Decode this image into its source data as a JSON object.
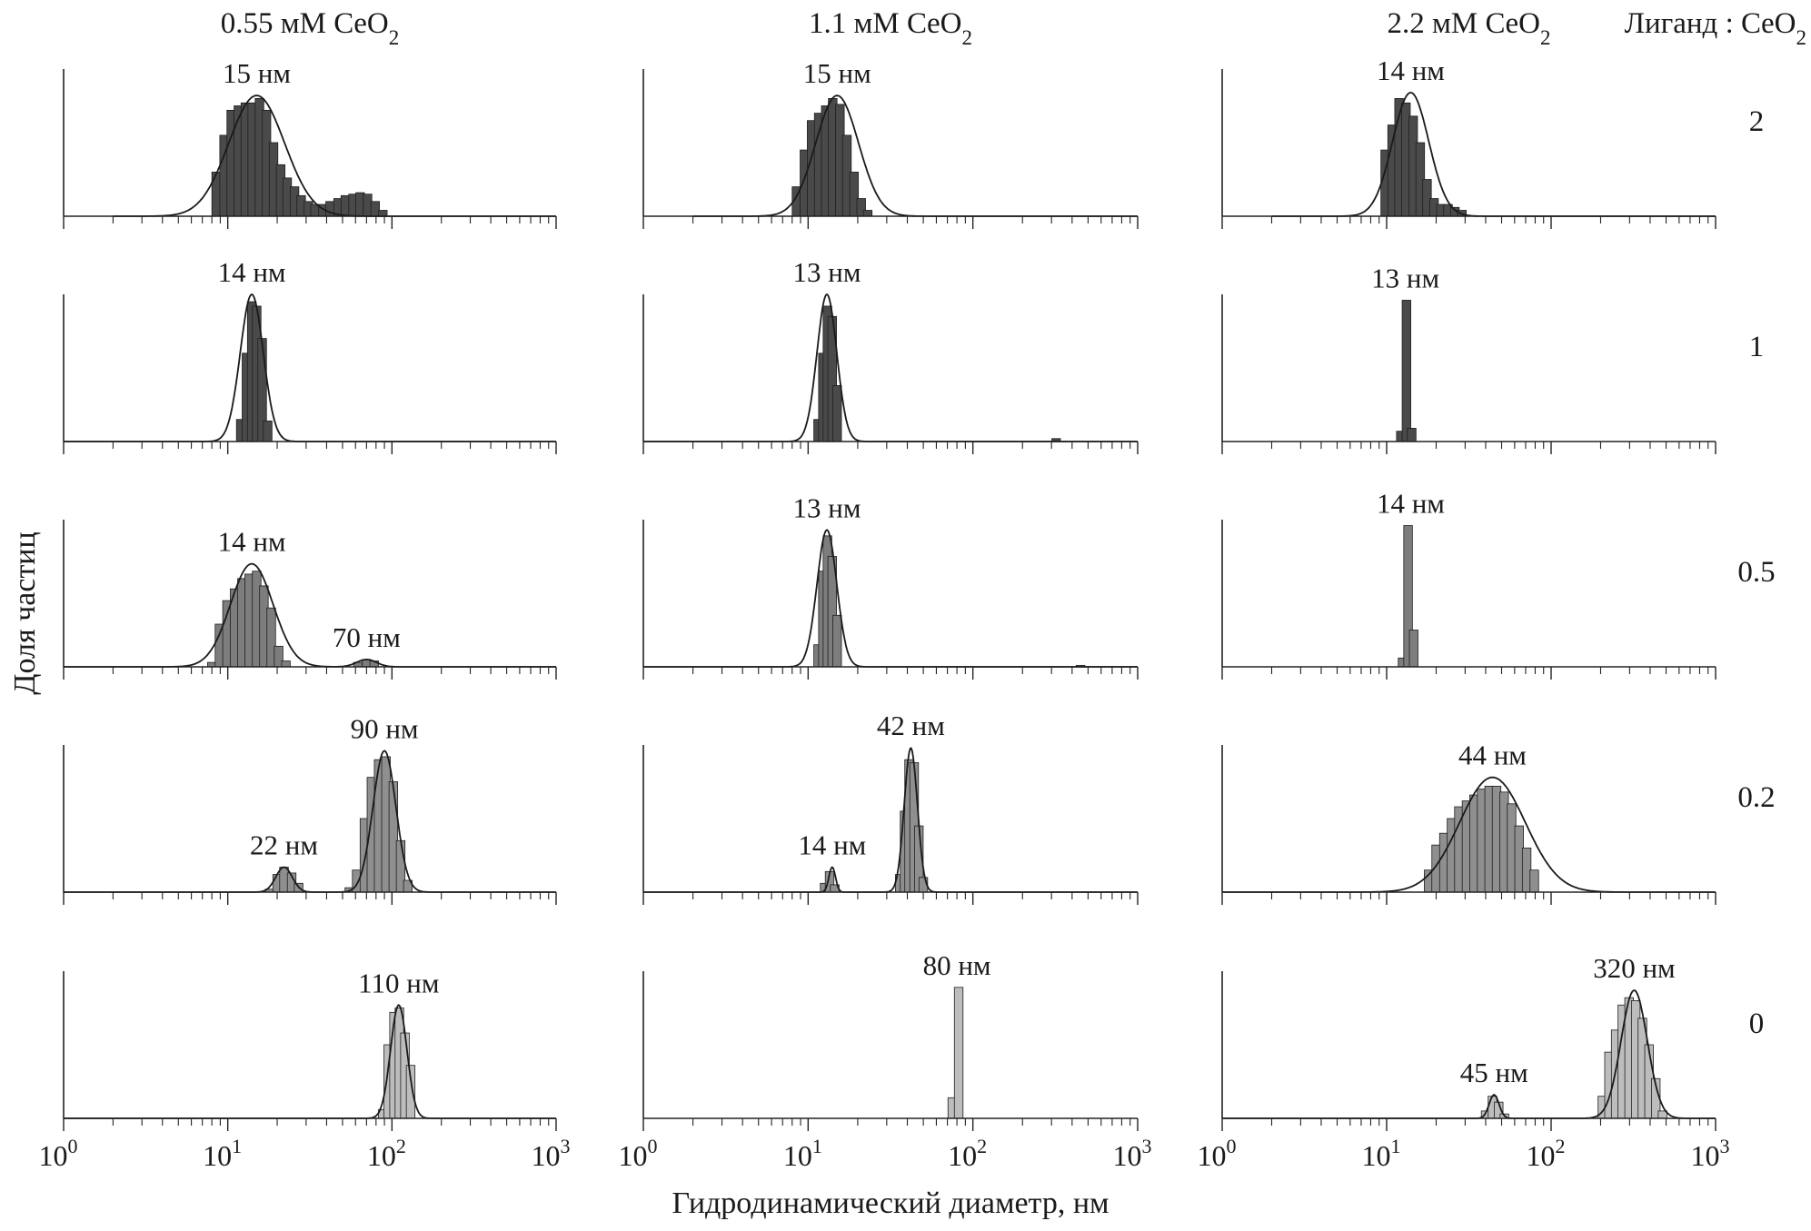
{
  "chart_data": {
    "type": "bar",
    "grid": false,
    "x_scale": "log",
    "xlim": [
      1,
      1000
    ],
    "x_tick_labels": [
      {
        "base": "10",
        "exp": "0"
      },
      {
        "base": "10",
        "exp": "1"
      },
      {
        "base": "10",
        "exp": "2"
      },
      {
        "base": "10",
        "exp": "3"
      }
    ],
    "xlabel": "Гидродинамический диаметр, нм",
    "ylabel": "Доля частиц",
    "columns": [
      {
        "prefix": "0.55 мМ CeO",
        "sub": "2"
      },
      {
        "prefix": "1.1 мМ CeO",
        "sub": "2"
      },
      {
        "prefix": "2.2 мМ CeO",
        "sub": "2"
      }
    ],
    "ratio_header": {
      "prefix": "Лиганд : CeO",
      "sub": "2"
    },
    "ratios": [
      "2",
      "1",
      "0.5",
      "0.2",
      "0"
    ],
    "bar_colors": [
      "#4a4a4a",
      "#4a4a4a",
      "#7d7d7d",
      "#8f8f8f",
      "#bdbdbd"
    ],
    "panels": [
      {
        "row": 0,
        "col": 0,
        "peaks": [
          {
            "label": "15 нм",
            "x": 15,
            "sd": 0.17,
            "height": 0.82
          }
        ],
        "bars": [
          [
            8.5,
            0.3
          ],
          [
            9.5,
            0.55
          ],
          [
            10.5,
            0.72
          ],
          [
            11.6,
            0.75
          ],
          [
            12.8,
            0.77
          ],
          [
            14.1,
            0.77
          ],
          [
            15.6,
            0.8
          ],
          [
            17.2,
            0.72
          ],
          [
            19,
            0.5
          ],
          [
            21,
            0.35
          ],
          [
            23,
            0.26
          ],
          [
            25.5,
            0.2
          ],
          [
            28,
            0.14
          ],
          [
            31,
            0.1
          ],
          [
            34,
            0.08
          ],
          [
            38,
            0.08
          ],
          [
            42,
            0.1
          ],
          [
            47,
            0.12
          ],
          [
            52,
            0.14
          ],
          [
            58,
            0.15
          ],
          [
            64,
            0.16
          ],
          [
            71,
            0.15
          ],
          [
            79,
            0.1
          ],
          [
            88,
            0.04
          ]
        ]
      },
      {
        "row": 0,
        "col": 1,
        "peaks": [
          {
            "label": "15 нм",
            "x": 15,
            "sd": 0.13,
            "height": 0.82
          }
        ],
        "bars": [
          [
            8.5,
            0.2
          ],
          [
            9.5,
            0.45
          ],
          [
            10.5,
            0.65
          ],
          [
            11.6,
            0.7
          ],
          [
            12.8,
            0.75
          ],
          [
            14.1,
            0.8
          ],
          [
            15.6,
            0.76
          ],
          [
            17.2,
            0.55
          ],
          [
            19,
            0.3
          ],
          [
            21,
            0.12
          ],
          [
            23,
            0.04
          ]
        ]
      },
      {
        "row": 0,
        "col": 2,
        "peaks": [
          {
            "label": "14 нм",
            "x": 14,
            "sd": 0.11,
            "height": 0.84
          }
        ],
        "bars": [
          [
            9.8,
            0.45
          ],
          [
            10.8,
            0.62
          ],
          [
            11.9,
            0.8
          ],
          [
            13.1,
            0.77
          ],
          [
            14.5,
            0.68
          ],
          [
            16,
            0.5
          ],
          [
            17.6,
            0.25
          ],
          [
            19.4,
            0.12
          ],
          [
            21.4,
            0.08
          ],
          [
            23.6,
            0.08
          ],
          [
            26,
            0.06
          ],
          [
            28.7,
            0.04
          ]
        ]
      },
      {
        "row": 1,
        "col": 0,
        "peaks": [
          {
            "label": "14 нм",
            "x": 14,
            "sd": 0.07,
            "height": 1.0
          }
        ],
        "bars": [
          [
            12,
            0.15
          ],
          [
            13,
            0.6
          ],
          [
            14,
            0.95
          ],
          [
            15,
            0.92
          ],
          [
            16.2,
            0.7
          ],
          [
            17.5,
            0.14
          ]
        ]
      },
      {
        "row": 1,
        "col": 1,
        "peaks": [
          {
            "label": "13 нм",
            "x": 13,
            "sd": 0.06,
            "height": 1.0
          }
        ],
        "bars": [
          [
            11.5,
            0.15
          ],
          [
            12.3,
            0.6
          ],
          [
            13.1,
            0.92
          ],
          [
            14,
            0.85
          ],
          [
            15,
            0.38
          ],
          [
            320,
            0.02
          ]
        ]
      },
      {
        "row": 1,
        "col": 2,
        "peaks": [
          {
            "label": "13 нм",
            "x": 13,
            "sd": 0.0,
            "height": 0.0
          }
        ],
        "bars": [
          [
            12.2,
            0.07
          ],
          [
            13.2,
            0.96
          ],
          [
            14.2,
            0.09
          ]
        ]
      },
      {
        "row": 2,
        "col": 0,
        "peaks": [
          {
            "label": "14 нм",
            "x": 14,
            "sd": 0.13,
            "height": 0.7
          },
          {
            "label": "70 нм",
            "x": 70,
            "sd": 0.06,
            "height": 0.05
          }
        ],
        "bars": [
          [
            8,
            0.03
          ],
          [
            8.9,
            0.29
          ],
          [
            9.9,
            0.45
          ],
          [
            11,
            0.53
          ],
          [
            12.2,
            0.6
          ],
          [
            13.5,
            0.63
          ],
          [
            15,
            0.65
          ],
          [
            16.6,
            0.55
          ],
          [
            18.4,
            0.4
          ],
          [
            20.4,
            0.14
          ],
          [
            22.6,
            0.04
          ],
          [
            62,
            0.03
          ],
          [
            70,
            0.05
          ],
          [
            78,
            0.04
          ]
        ]
      },
      {
        "row": 2,
        "col": 1,
        "peaks": [
          {
            "label": "13 нм",
            "x": 13,
            "sd": 0.06,
            "height": 0.93
          }
        ],
        "bars": [
          [
            11.5,
            0.15
          ],
          [
            12.3,
            0.65
          ],
          [
            13.1,
            0.89
          ],
          [
            14,
            0.75
          ],
          [
            15,
            0.35
          ],
          [
            450,
            0.01
          ]
        ]
      },
      {
        "row": 2,
        "col": 2,
        "peaks": [
          {
            "label": "14 нм",
            "x": 14,
            "sd": 0.0,
            "height": 0.0
          }
        ],
        "bars": [
          [
            12.5,
            0.06
          ],
          [
            13.5,
            0.96
          ],
          [
            14.6,
            0.25
          ]
        ]
      },
      {
        "row": 3,
        "col": 0,
        "peaks": [
          {
            "label": "22 нм",
            "x": 22,
            "sd": 0.05,
            "height": 0.17
          },
          {
            "label": "90 нм",
            "x": 90,
            "sd": 0.07,
            "height": 0.96
          }
        ],
        "bars": [
          [
            18,
            0.02
          ],
          [
            20,
            0.12
          ],
          [
            22,
            0.17
          ],
          [
            24.5,
            0.13
          ],
          [
            27,
            0.06
          ],
          [
            55,
            0.03
          ],
          [
            61,
            0.15
          ],
          [
            68,
            0.5
          ],
          [
            75,
            0.78
          ],
          [
            83,
            0.9
          ],
          [
            92,
            0.92
          ],
          [
            102,
            0.75
          ],
          [
            113,
            0.35
          ],
          [
            125,
            0.08
          ]
        ]
      },
      {
        "row": 3,
        "col": 1,
        "peaks": [
          {
            "label": "14 нм",
            "x": 14,
            "sd": 0.02,
            "height": 0.17
          },
          {
            "label": "42 нм",
            "x": 42,
            "sd": 0.04,
            "height": 0.98
          }
        ],
        "bars": [
          [
            12.6,
            0.06
          ],
          [
            13.5,
            0.14
          ],
          [
            14.5,
            0.05
          ],
          [
            36,
            0.12
          ],
          [
            38.5,
            0.55
          ],
          [
            41,
            0.9
          ],
          [
            44,
            0.88
          ],
          [
            47,
            0.45
          ],
          [
            50,
            0.1
          ]
        ]
      },
      {
        "row": 3,
        "col": 2,
        "peaks": [
          {
            "label": "44 нм",
            "x": 44,
            "sd": 0.2,
            "height": 0.78
          }
        ],
        "bars": [
          [
            18,
            0.15
          ],
          [
            20,
            0.32
          ],
          [
            22.3,
            0.4
          ],
          [
            24.8,
            0.5
          ],
          [
            27.5,
            0.58
          ],
          [
            30.6,
            0.62
          ],
          [
            34,
            0.66
          ],
          [
            37.8,
            0.7
          ],
          [
            42,
            0.72
          ],
          [
            46.6,
            0.72
          ],
          [
            51.8,
            0.68
          ],
          [
            57.5,
            0.6
          ],
          [
            63.9,
            0.45
          ],
          [
            71,
            0.3
          ],
          [
            79,
            0.15
          ]
        ]
      },
      {
        "row": 4,
        "col": 0,
        "peaks": [
          {
            "label": "110 нм",
            "x": 110,
            "sd": 0.05,
            "height": 0.77
          }
        ],
        "bars": [
          [
            88,
            0.06
          ],
          [
            95,
            0.5
          ],
          [
            103,
            0.72
          ],
          [
            111,
            0.75
          ],
          [
            120,
            0.58
          ],
          [
            130,
            0.36
          ]
        ]
      },
      {
        "row": 4,
        "col": 1,
        "peaks": [
          {
            "label": "80 нм",
            "x": 80,
            "sd": 0.0,
            "height": 0.0
          }
        ],
        "bars": [
          [
            75,
            0.14
          ],
          [
            82,
            0.89
          ]
        ]
      },
      {
        "row": 4,
        "col": 2,
        "peaks": [
          {
            "label": "45 нм",
            "x": 45,
            "sd": 0.03,
            "height": 0.16
          },
          {
            "label": "320 нм",
            "x": 320,
            "sd": 0.08,
            "height": 0.87
          }
        ],
        "bars": [
          [
            40,
            0.05
          ],
          [
            44,
            0.15
          ],
          [
            48,
            0.11
          ],
          [
            52,
            0.03
          ],
          [
            205,
            0.15
          ],
          [
            225,
            0.45
          ],
          [
            247,
            0.6
          ],
          [
            271,
            0.77
          ],
          [
            298,
            0.82
          ],
          [
            327,
            0.8
          ],
          [
            359,
            0.68
          ],
          [
            394,
            0.5
          ],
          [
            433,
            0.27
          ],
          [
            476,
            0.05
          ]
        ]
      }
    ]
  }
}
